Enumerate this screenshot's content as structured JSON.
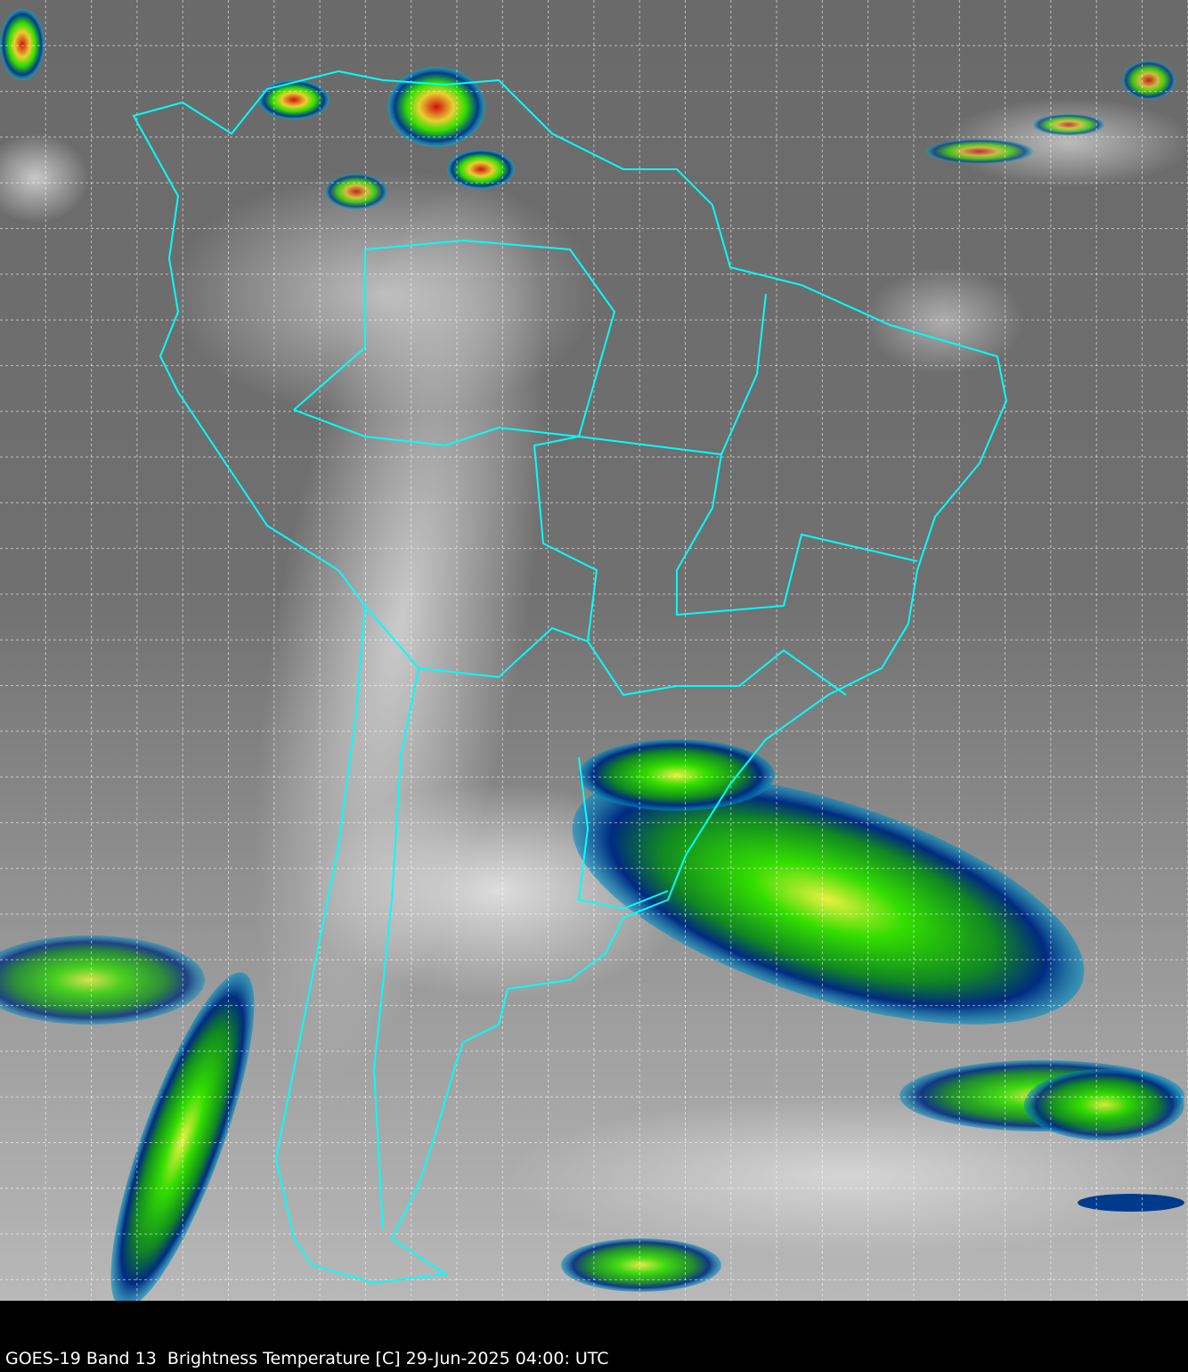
{
  "caption": "GOES-19 Band 13  Brightness Temperature [C] 29-Jun-2025 04:00: UTC",
  "colors": {
    "background": "#000000",
    "boundaries": "#00ffff",
    "grid": "#ffffff",
    "cold_cloud_green": "#33dd00",
    "cold_cloud_blue": "#003a8c",
    "very_cold_red": "#d01010"
  }
}
